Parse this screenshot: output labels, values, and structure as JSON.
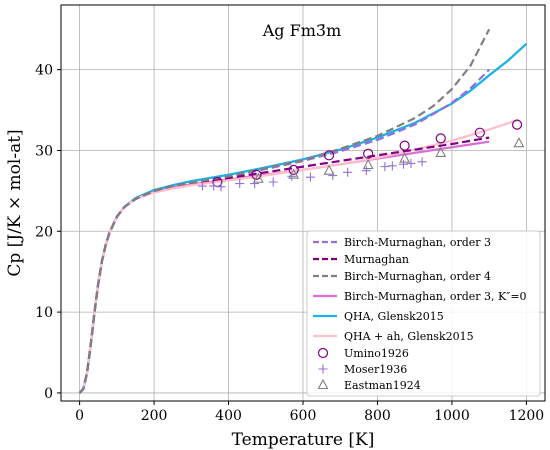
{
  "chart_data": {
    "type": "line",
    "title": "Ag Fm3̄m",
    "xlabel": "Temperature [K]",
    "ylabel": "Cp [J/K × mol-at]",
    "xlim": [
      -50,
      1250
    ],
    "ylim": [
      -1,
      48
    ],
    "xticks": [
      0,
      200,
      400,
      600,
      800,
      1000,
      1200
    ],
    "yticks": [
      0,
      10,
      20,
      30,
      40
    ],
    "grid": true,
    "legend_position": "lower-right",
    "series": [
      {
        "name": "Birch-Murnaghan, order 3",
        "style": "dashed",
        "color": "#9370db",
        "x": [
          0,
          10,
          20,
          30,
          40,
          50,
          60,
          70,
          80,
          100,
          120,
          150,
          200,
          250,
          300,
          400,
          500,
          600,
          700,
          800,
          900,
          950,
          1000,
          1050,
          1100
        ],
        "y": [
          0,
          0.5,
          2.5,
          6.0,
          10.0,
          13.5,
          16.3,
          18.3,
          19.8,
          21.8,
          23.0,
          24.0,
          25.0,
          25.6,
          26.0,
          26.8,
          27.7,
          28.7,
          29.9,
          31.3,
          33.2,
          34.5,
          35.9,
          37.7,
          40.0
        ]
      },
      {
        "name": "Murnaghan",
        "style": "dashed",
        "color": "#800080",
        "x": [
          0,
          10,
          20,
          30,
          40,
          50,
          60,
          70,
          80,
          100,
          120,
          150,
          200,
          250,
          300,
          400,
          500,
          600,
          700,
          800,
          900,
          1000,
          1100
        ],
        "y": [
          0,
          0.5,
          2.5,
          6.0,
          10.0,
          13.5,
          16.3,
          18.3,
          19.8,
          21.8,
          23.0,
          24.0,
          25.0,
          25.6,
          26.0,
          26.6,
          27.3,
          28.0,
          28.7,
          29.4,
          30.1,
          30.8,
          31.6
        ]
      },
      {
        "name": "Birch-Murnaghan, order 4",
        "style": "dashed",
        "color": "#808080",
        "x": [
          0,
          10,
          20,
          30,
          40,
          50,
          60,
          70,
          80,
          100,
          120,
          150,
          200,
          250,
          300,
          400,
          500,
          600,
          700,
          800,
          900,
          950,
          1000,
          1050,
          1100
        ],
        "y": [
          0,
          0.5,
          2.5,
          6.0,
          10.0,
          13.5,
          16.3,
          18.3,
          19.8,
          21.8,
          23.0,
          24.0,
          25.0,
          25.6,
          26.0,
          26.8,
          27.8,
          28.8,
          30.2,
          31.8,
          34.0,
          35.5,
          37.6,
          40.5,
          45.0
        ]
      },
      {
        "name": "Birch-Murnaghan, order 3, K″=0",
        "style": "solid",
        "color": "#da70d6",
        "x": [
          0,
          10,
          20,
          30,
          40,
          50,
          60,
          70,
          80,
          100,
          120,
          150,
          200,
          250,
          300,
          400,
          500,
          600,
          700,
          800,
          900,
          1000,
          1100
        ],
        "y": [
          0,
          0.5,
          2.5,
          6.0,
          10.0,
          13.5,
          16.3,
          18.3,
          19.8,
          21.8,
          23.0,
          24.0,
          24.9,
          25.4,
          25.8,
          26.4,
          27.0,
          27.6,
          28.3,
          29.0,
          29.7,
          30.4,
          31.1
        ]
      },
      {
        "name": "QHA, Glensk2015",
        "style": "solid",
        "color": "#1ab2e8",
        "x": [
          0,
          10,
          20,
          30,
          40,
          50,
          60,
          70,
          80,
          100,
          120,
          150,
          200,
          250,
          300,
          400,
          500,
          600,
          700,
          800,
          900,
          1000,
          1050,
          1100,
          1150,
          1200
        ],
        "y": [
          0,
          0.5,
          2.5,
          6.0,
          10.0,
          13.5,
          16.3,
          18.3,
          19.8,
          21.8,
          23.0,
          24.1,
          25.1,
          25.7,
          26.2,
          27.0,
          27.9,
          28.9,
          30.1,
          31.6,
          33.4,
          35.8,
          37.4,
          39.3,
          41.1,
          43.2
        ]
      },
      {
        "name": "QHA + ah, Glensk2015",
        "style": "solid",
        "color": "#ffc0cb",
        "x": [
          0,
          10,
          20,
          30,
          40,
          50,
          60,
          70,
          80,
          100,
          120,
          150,
          200,
          250,
          300,
          400,
          500,
          600,
          700,
          800,
          900,
          1000,
          1100,
          1180
        ],
        "y": [
          0,
          0.5,
          2.5,
          6.0,
          10.0,
          13.5,
          16.3,
          18.3,
          19.8,
          21.8,
          23.0,
          24.0,
          24.8,
          25.3,
          25.7,
          26.3,
          26.9,
          27.6,
          28.3,
          29.1,
          30.1,
          31.2,
          32.6,
          33.8
        ]
      }
    ],
    "scatter": [
      {
        "name": "Umino1926",
        "marker": "circle-open",
        "color": "#800080",
        "x": [
          370,
          475,
          575,
          670,
          775,
          873,
          970,
          1075,
          1175
        ],
        "y": [
          26.1,
          27.0,
          27.6,
          29.4,
          29.6,
          30.6,
          31.5,
          32.2,
          33.2
        ]
      },
      {
        "name": "Moser1936",
        "marker": "plus",
        "color": "#9370db",
        "x": [
          330,
          360,
          380,
          430,
          470,
          520,
          570,
          620,
          680,
          720,
          770,
          820,
          840,
          870,
          890,
          920
        ],
        "y": [
          25.6,
          25.6,
          25.5,
          25.9,
          25.9,
          26.1,
          26.8,
          26.7,
          26.9,
          27.3,
          27.5,
          28.0,
          28.1,
          28.3,
          28.4,
          28.6
        ]
      },
      {
        "name": "Eastman1924",
        "marker": "triangle-open",
        "color": "#808080",
        "x": [
          480,
          575,
          670,
          775,
          873,
          970,
          1180
        ],
        "y": [
          26.5,
          27.0,
          27.5,
          28.2,
          29.0,
          29.7,
          30.9
        ]
      }
    ]
  }
}
